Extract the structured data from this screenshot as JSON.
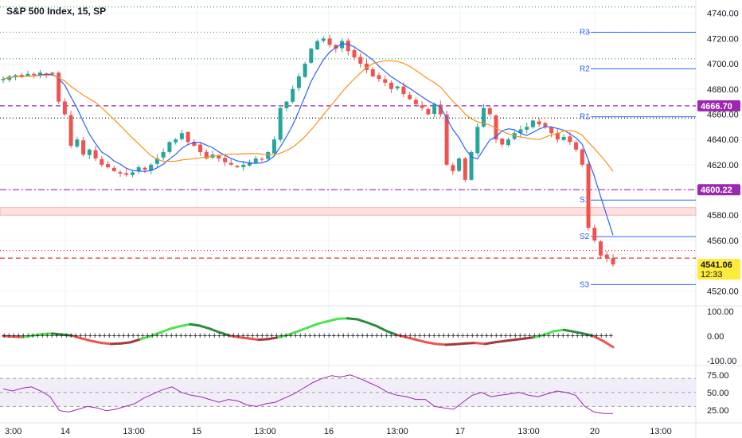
{
  "chart_data": {
    "type": "candlestick",
    "title": "S&P 500 Index, 15, SP",
    "price_axis": {
      "ticks": [
        4740,
        4720,
        4700,
        4680,
        4660,
        4640,
        4620,
        4600,
        4580,
        4560,
        4540,
        4520
      ],
      "tick_labels": [
        "4740.00",
        "4720.00",
        "4700.00",
        "4680.00",
        "4660.00",
        "4640.00",
        "4620.00",
        "4600.00",
        "4580.00",
        "4560.00",
        "4540.00",
        "4520.00"
      ]
    },
    "time_axis": {
      "labels": [
        "3:00",
        "14",
        "13:00",
        "15",
        "13:00",
        "16",
        "13:00",
        "17",
        "13:00",
        "20",
        "13:00"
      ]
    },
    "price_tags": [
      {
        "label": "4666.70",
        "value": 4666.7,
        "color": "#9c27b0",
        "text_color": "#ffffff"
      },
      {
        "label": "4600.22",
        "value": 4600.22,
        "color": "#9c27b0",
        "text_color": "#ffffff"
      },
      {
        "label": "4541.06",
        "sublabel": "12:33",
        "value": 4541.06,
        "color": "#ffeb3b",
        "text_color": "#131722"
      }
    ],
    "pivots": [
      {
        "name": "R3",
        "value": 4725
      },
      {
        "name": "R2",
        "value": 4696
      },
      {
        "name": "R1",
        "value": 4658
      },
      {
        "name": "S1",
        "value": 4592
      },
      {
        "name": "S2",
        "value": 4563
      },
      {
        "name": "S3",
        "value": 4525
      }
    ],
    "horizontal_levels": [
      {
        "value": 4745,
        "style": "dotted",
        "color": "#4caf50"
      },
      {
        "value": 4725,
        "style": "dotted",
        "color": "#4caf50"
      },
      {
        "value": 4704,
        "style": "dotted",
        "color": "#4caf50"
      },
      {
        "value": 4666.7,
        "style": "dashed",
        "color": "#9c27b0"
      },
      {
        "value": 4657,
        "style": "dotted",
        "color": "#000000"
      },
      {
        "value": 4600.22,
        "style": "dashdot",
        "color": "#9c27b0"
      },
      {
        "value": 4552,
        "style": "dotted",
        "color": "#e53935"
      },
      {
        "value": 4546,
        "style": "dashed",
        "color": "#e53935"
      }
    ],
    "ohlc_close_path": [
      4688,
      4690,
      4691,
      4690,
      4692,
      4691,
      4693,
      4692,
      4692,
      4670,
      4660,
      4635,
      4640,
      4628,
      4632,
      4625,
      4620,
      4618,
      4615,
      4613,
      4612,
      4614,
      4618,
      4616,
      4620,
      4625,
      4630,
      4638,
      4640,
      4645,
      4638,
      4635,
      4630,
      4625,
      4628,
      4625,
      4622,
      4620,
      4618,
      4620,
      4622,
      4625,
      4624,
      4630,
      4640,
      4665,
      4670,
      4680,
      4690,
      4700,
      4712,
      4718,
      4720,
      4715,
      4712,
      4718,
      4710,
      4705,
      4700,
      4695,
      4690,
      4688,
      4685,
      4680,
      4682,
      4676,
      4672,
      4668,
      4665,
      4660,
      4668,
      4660,
      4620,
      4615,
      4625,
      4608,
      4630,
      4650,
      4665,
      4660,
      4640,
      4636,
      4640,
      4645,
      4648,
      4650,
      4655,
      4652,
      4650,
      4645,
      4640,
      4642,
      4638,
      4632,
      4620,
      4570,
      4560,
      4548,
      4546,
      4541.06
    ],
    "ma_fast_color": "#2962ff",
    "ma_slow_color": "#f7931a",
    "oscillator": {
      "ticks": [
        100,
        0,
        -100
      ],
      "tick_labels": [
        "100.00",
        "0.00",
        "-100.00"
      ],
      "values": [
        0,
        -2,
        -4,
        2,
        8,
        10,
        6,
        2,
        -10,
        -20,
        -28,
        -32,
        -30,
        -25,
        -12,
        0,
        15,
        30,
        40,
        48,
        42,
        30,
        15,
        2,
        -5,
        -10,
        -15,
        -12,
        -5,
        5,
        20,
        35,
        50,
        60,
        70,
        72,
        68,
        55,
        40,
        20,
        5,
        -5,
        -15,
        -25,
        -32,
        -35,
        -33,
        -30,
        -28,
        -32,
        -25,
        -20,
        -15,
        -10,
        -5,
        5,
        20,
        25,
        18,
        10,
        0,
        -20,
        -45
      ]
    },
    "rsi": {
      "ticks": [
        75,
        50,
        25
      ],
      "tick_labels": [
        "75.00",
        "50.00",
        "25.00"
      ],
      "band": [
        30,
        70
      ],
      "values": [
        55,
        52,
        56,
        58,
        52,
        44,
        24,
        22,
        26,
        30,
        28,
        24,
        26,
        30,
        34,
        42,
        48,
        54,
        58,
        50,
        46,
        44,
        40,
        36,
        40,
        38,
        32,
        30,
        34,
        36,
        42,
        48,
        56,
        64,
        70,
        74,
        72,
        75,
        70,
        64,
        58,
        50,
        46,
        44,
        40,
        40,
        30,
        28,
        26,
        36,
        46,
        50,
        44,
        46,
        48,
        50,
        46,
        44,
        48,
        52,
        50,
        46,
        30,
        22,
        20,
        20
      ]
    }
  }
}
